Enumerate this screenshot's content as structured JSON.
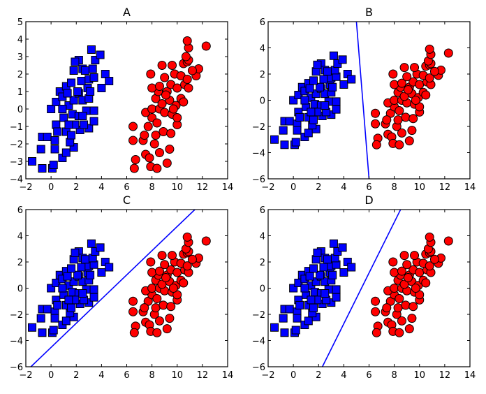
{
  "chart_data": [
    {
      "type": "scatter",
      "title": "A",
      "xlim": [
        -2,
        14
      ],
      "ylim": [
        -4,
        5
      ],
      "xticks": [
        -2,
        0,
        2,
        4,
        6,
        8,
        10,
        12,
        14
      ],
      "yticks": [
        -4,
        -3,
        -2,
        -1,
        0,
        1,
        2,
        3,
        4,
        5
      ],
      "line": null
    },
    {
      "type": "scatter",
      "title": "B",
      "xlim": [
        -2,
        14
      ],
      "ylim": [
        -6,
        6
      ],
      "xticks": [
        -2,
        0,
        2,
        4,
        6,
        8,
        10,
        12,
        14
      ],
      "yticks": [
        -6,
        -4,
        -2,
        0,
        2,
        4,
        6
      ],
      "line": [
        [
          5.0,
          6
        ],
        [
          6.0,
          -6
        ]
      ]
    },
    {
      "type": "scatter",
      "title": "C",
      "xlim": [
        -2,
        14
      ],
      "ylim": [
        -6,
        6
      ],
      "xticks": [
        -2,
        0,
        2,
        4,
        6,
        8,
        10,
        12,
        14
      ],
      "yticks": [
        -6,
        -4,
        -2,
        0,
        2,
        4,
        6
      ],
      "line": [
        [
          -1.6,
          -6
        ],
        [
          11.4,
          6
        ]
      ]
    },
    {
      "type": "scatter",
      "title": "D",
      "xlim": [
        -2,
        14
      ],
      "ylim": [
        -6,
        6
      ],
      "xticks": [
        -2,
        0,
        2,
        4,
        6,
        8,
        10,
        12,
        14
      ],
      "yticks": [
        -6,
        -4,
        -2,
        0,
        2,
        4,
        6
      ],
      "line": [
        [
          2.3,
          -6
        ],
        [
          8.5,
          6
        ]
      ]
    }
  ],
  "series": {
    "class_blue": {
      "marker": "square",
      "color": "#0000ff",
      "points": [
        [
          -1.5,
          -3
        ],
        [
          -0.7,
          -3.4
        ],
        [
          0.1,
          -3.4
        ],
        [
          0.2,
          -3.2
        ],
        [
          -0.8,
          -2.3
        ],
        [
          -0.7,
          -1.6
        ],
        [
          -0.3,
          -1.6
        ],
        [
          0.3,
          -1.8
        ],
        [
          0.3,
          -2.3
        ],
        [
          0.9,
          -2.8
        ],
        [
          1.2,
          -2.5
        ],
        [
          1.8,
          -2.2
        ],
        [
          1.5,
          -1.9
        ],
        [
          0.4,
          -0.9
        ],
        [
          0.5,
          -1.3
        ],
        [
          1.2,
          -1.3
        ],
        [
          1.6,
          -1.5
        ],
        [
          2.3,
          -1.2
        ],
        [
          3.0,
          -1.1
        ],
        [
          0.0,
          0.0
        ],
        [
          0.4,
          0.4
        ],
        [
          0.7,
          1.0
        ],
        [
          0.9,
          0.7
        ],
        [
          1.2,
          1.3
        ],
        [
          1.4,
          0.2
        ],
        [
          1.0,
          -0.5
        ],
        [
          1.7,
          -0.3
        ],
        [
          2.2,
          -0.4
        ],
        [
          2.6,
          -0.9
        ],
        [
          2.8,
          -0.1
        ],
        [
          3.4,
          -0.1
        ],
        [
          3.4,
          -0.7
        ],
        [
          1.8,
          0.5
        ],
        [
          2.2,
          0.9
        ],
        [
          2.5,
          0.5
        ],
        [
          3.0,
          0.6
        ],
        [
          2.9,
          1.2
        ],
        [
          2.1,
          1.0
        ],
        [
          1.6,
          1.5
        ],
        [
          2.4,
          1.6
        ],
        [
          3.0,
          1.7
        ],
        [
          3.4,
          1.8
        ],
        [
          4.0,
          1.2
        ],
        [
          4.3,
          2.0
        ],
        [
          4.6,
          1.6
        ],
        [
          1.8,
          2.2
        ],
        [
          2.2,
          2.8
        ],
        [
          2.5,
          2.3
        ],
        [
          3.3,
          2.3
        ],
        [
          3.5,
          2.8
        ],
        [
          3.2,
          3.4
        ],
        [
          3.9,
          3.1
        ],
        [
          1.9,
          2.7
        ],
        [
          2.7,
          2.2
        ],
        [
          1.3,
          0.9
        ],
        [
          0.9,
          0.0
        ],
        [
          1.9,
          -0.9
        ],
        [
          3.1,
          1.0
        ],
        [
          2.5,
          -0.4
        ],
        [
          1.4,
          -0.9
        ]
      ]
    },
    "class_red": {
      "marker": "circle",
      "color": "#ff0000",
      "points": [
        [
          6.5,
          -1.0
        ],
        [
          6.5,
          -1.8
        ],
        [
          6.7,
          -2.9
        ],
        [
          6.6,
          -3.4
        ],
        [
          7.3,
          -1.8
        ],
        [
          7.5,
          -2.6
        ],
        [
          7.8,
          -2.8
        ],
        [
          7.9,
          -3.3
        ],
        [
          8.4,
          -3.4
        ],
        [
          9.2,
          -3.1
        ],
        [
          8.2,
          -2.0
        ],
        [
          8.6,
          -2.5
        ],
        [
          9.4,
          -2.3
        ],
        [
          7.7,
          -1.0
        ],
        [
          8.0,
          -0.5
        ],
        [
          8.3,
          -1.5
        ],
        [
          8.9,
          -1.3
        ],
        [
          9.5,
          -1.4
        ],
        [
          7.5,
          -0.2
        ],
        [
          8.0,
          0.0
        ],
        [
          8.6,
          0.0
        ],
        [
          9.0,
          -0.2
        ],
        [
          9.6,
          -0.3
        ],
        [
          10.0,
          -0.9
        ],
        [
          10.0,
          -0.5
        ],
        [
          8.3,
          0.6
        ],
        [
          8.5,
          1.0
        ],
        [
          8.8,
          0.3
        ],
        [
          9.4,
          0.5
        ],
        [
          9.9,
          0.2
        ],
        [
          10.3,
          0.6
        ],
        [
          10.5,
          0.4
        ],
        [
          8.0,
          1.2
        ],
        [
          8.6,
          1.3
        ],
        [
          9.2,
          1.0
        ],
        [
          9.5,
          1.4
        ],
        [
          10.0,
          1.2
        ],
        [
          10.6,
          1.4
        ],
        [
          10.9,
          1.2
        ],
        [
          9.0,
          1.8
        ],
        [
          9.8,
          2.0
        ],
        [
          10.3,
          1.9
        ],
        [
          10.8,
          1.7
        ],
        [
          11.5,
          1.9
        ],
        [
          11.7,
          2.3
        ],
        [
          11.2,
          2.2
        ],
        [
          10.5,
          2.6
        ],
        [
          10.8,
          2.7
        ],
        [
          10.9,
          2.8
        ],
        [
          10.7,
          3.0
        ],
        [
          10.9,
          3.5
        ],
        [
          10.8,
          3.9
        ],
        [
          12.3,
          3.6
        ],
        [
          9.6,
          2.5
        ],
        [
          8.8,
          2.5
        ],
        [
          7.9,
          2.0
        ],
        [
          9.7,
          0.0
        ],
        [
          8.4,
          -0.8
        ],
        [
          9.1,
          0.8
        ],
        [
          7.4,
          -1.5
        ]
      ]
    },
    "line_color": "#0000ff"
  }
}
